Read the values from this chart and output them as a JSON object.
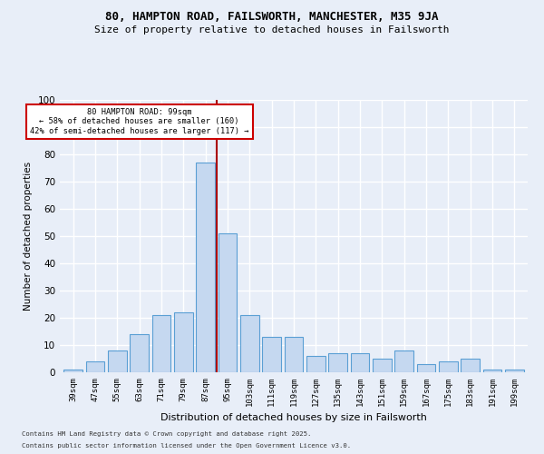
{
  "title_line1": "80, HAMPTON ROAD, FAILSWORTH, MANCHESTER, M35 9JA",
  "title_line2": "Size of property relative to detached houses in Failsworth",
  "xlabel": "Distribution of detached houses by size in Failsworth",
  "ylabel": "Number of detached properties",
  "categories": [
    "39sqm",
    "47sqm",
    "55sqm",
    "63sqm",
    "71sqm",
    "79sqm",
    "87sqm",
    "95sqm",
    "103sqm",
    "111sqm",
    "119sqm",
    "127sqm",
    "135sqm",
    "143sqm",
    "151sqm",
    "159sqm",
    "167sqm",
    "175sqm",
    "183sqm",
    "191sqm",
    "199sqm"
  ],
  "values": [
    1,
    4,
    8,
    14,
    21,
    22,
    77,
    51,
    21,
    13,
    13,
    6,
    7,
    7,
    5,
    8,
    3,
    4,
    5,
    1,
    1
  ],
  "bar_color": "#c5d8f0",
  "bar_edge_color": "#5a9fd4",
  "background_color": "#e8eef8",
  "grid_color": "#ffffff",
  "annotation_text_line1": "80 HAMPTON ROAD: 99sqm",
  "annotation_text_line2": "← 58% of detached houses are smaller (160)",
  "annotation_text_line3": "42% of semi-detached houses are larger (117) →",
  "annotation_box_facecolor": "#ffffff",
  "annotation_box_edgecolor": "#cc0000",
  "vline_color": "#aa0000",
  "vline_x": 6.5,
  "ylim": [
    0,
    100
  ],
  "yticks": [
    0,
    10,
    20,
    30,
    40,
    50,
    60,
    70,
    80,
    90,
    100
  ],
  "footnote1": "Contains HM Land Registry data © Crown copyright and database right 2025.",
  "footnote2": "Contains public sector information licensed under the Open Government Licence v3.0."
}
